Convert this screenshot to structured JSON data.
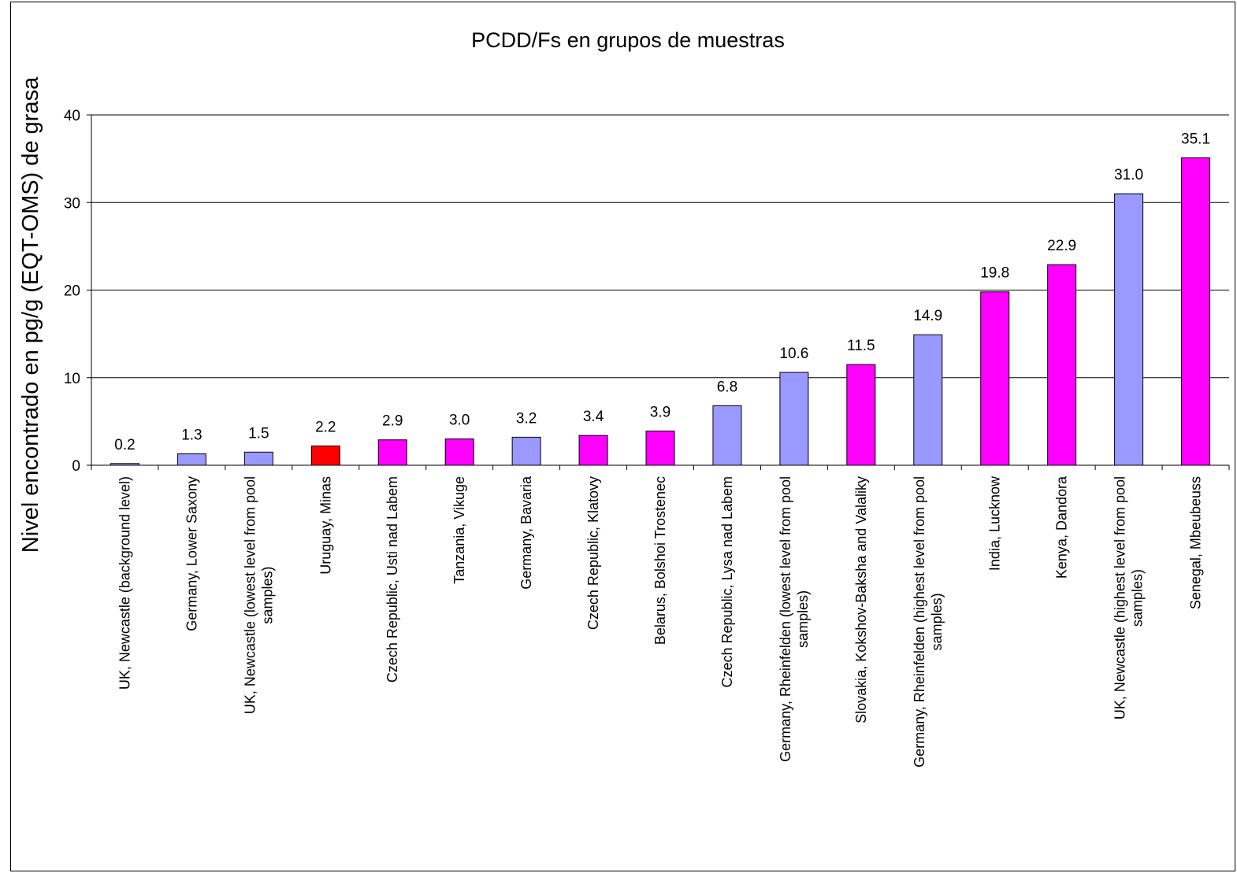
{
  "chart_data": {
    "type": "bar",
    "title": "PCDD/Fs en grupos de muestras",
    "y_label": "Nivel encontrado en pg/g (EQT-OMS) de grasa",
    "categories": [
      "UK, Newcastle (background level)",
      "Germany, Lower Saxony",
      "UK, Newcastle (lowest level from pool samples)",
      "Uruguay, Minas",
      "Czech Republic, Usti nad Labem",
      "Tanzania, Vikuge",
      "Germany, Bavaria",
      "Czech Republic, Klatovy",
      "Belarus, Bolshoi Trostenec",
      "Czech Republic, Lysa nad Labem",
      "Germany, Rheinfelden (lowest level from pool samples)",
      "Slovakia, Kokshov-Baksha and Valaliky",
      "Germany, Rheinfelden (highest level from pool samples)",
      "India, Lucknow",
      "Kenya, Dandora",
      "UK, Newcastle (highest level from pool samples)",
      "Senegal, Mbeubeuss"
    ],
    "values": [
      0.2,
      1.3,
      1.5,
      2.2,
      2.9,
      3.0,
      3.2,
      3.4,
      3.9,
      6.8,
      10.6,
      11.5,
      14.9,
      19.8,
      22.9,
      31.0,
      35.1
    ],
    "value_labels": [
      "0.2",
      "1.3",
      "1.5",
      "2.2",
      "2.9",
      "3.0",
      "3.2",
      "3.4",
      "3.9",
      "6.8",
      "10.6",
      "11.5",
      "14.9",
      "19.8",
      "22.9",
      "31.0",
      "35.1"
    ],
    "colors": [
      "#9999ff",
      "#9999ff",
      "#9999ff",
      "#ff0000",
      "#ff00ff",
      "#ff00ff",
      "#9999ff",
      "#ff00ff",
      "#ff00ff",
      "#9999ff",
      "#9999ff",
      "#ff00ff",
      "#9999ff",
      "#ff00ff",
      "#ff00ff",
      "#9999ff",
      "#ff00ff"
    ],
    "ylim": [
      0,
      40
    ],
    "yticks": [
      0,
      10,
      20,
      30,
      40
    ],
    "grid": true
  }
}
